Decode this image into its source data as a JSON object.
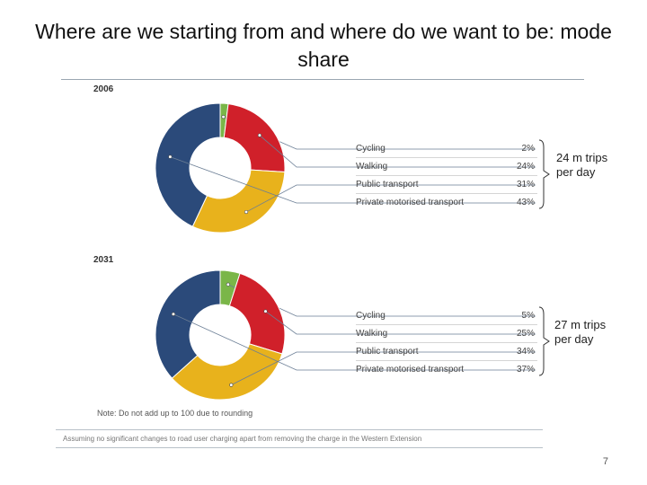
{
  "title": "Where are we starting from and where do we want to be: mode share",
  "page_number": "7",
  "note": "Note: Do not add up to 100 due to rounding",
  "footnote": "Assuming no significant changes to road user charging apart from removing the charge in the Western Extension",
  "colors": {
    "Cycling": "#7ab648",
    "Walking": "#d0202a",
    "Public transport": "#e8b21c",
    "Private motorised transport": "#2b4a7a"
  },
  "chart_data": [
    {
      "type": "pie",
      "donut": true,
      "title": "2006",
      "labels": [
        "Cycling",
        "Walking",
        "Public transport",
        "Private motorised transport"
      ],
      "values": [
        2,
        24,
        31,
        43
      ],
      "value_labels": [
        "2%",
        "24%",
        "31%",
        "43%"
      ],
      "annotation": "24 m trips per day"
    },
    {
      "type": "pie",
      "donut": true,
      "title": "2031",
      "labels": [
        "Cycling",
        "Walking",
        "Public transport",
        "Private motorised transport"
      ],
      "values": [
        5,
        25,
        34,
        37
      ],
      "value_labels": [
        "5%",
        "25%",
        "34%",
        "37%"
      ],
      "annotation": "27 m trips per day"
    }
  ]
}
